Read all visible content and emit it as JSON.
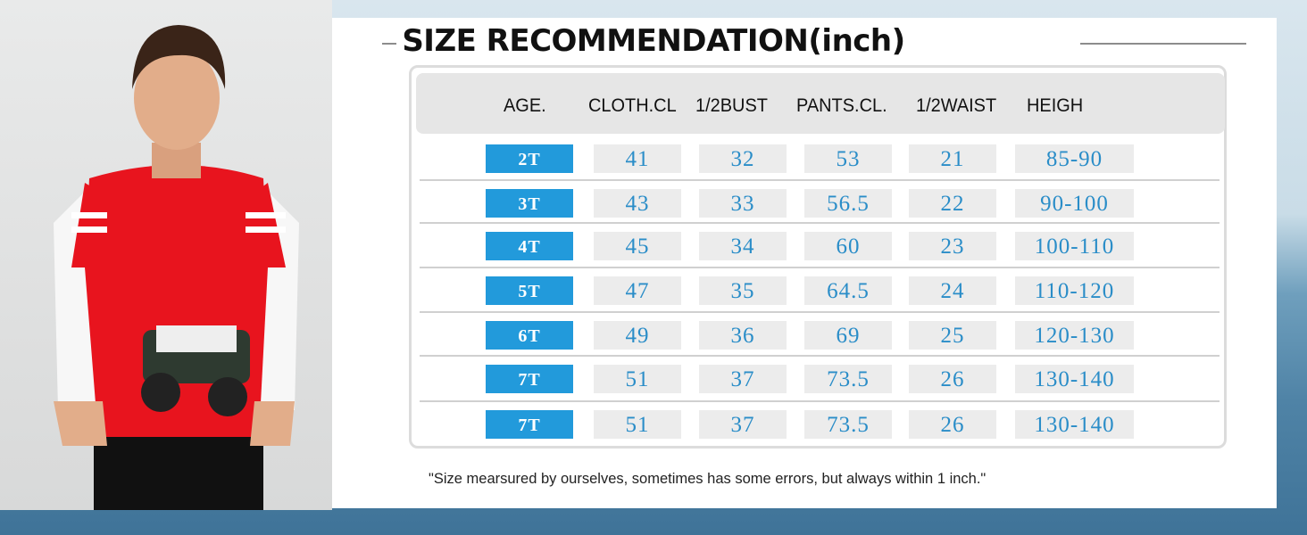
{
  "title": "SIZE RECOMMENDATION(inch)",
  "headers": [
    "AGE.",
    "CLOTH.CL",
    "1/2BUST",
    "PANTS.CL.",
    "1/2WAIST",
    "HEIGH"
  ],
  "rows": [
    [
      "2T",
      "41",
      "32",
      "53",
      "21",
      "85-90"
    ],
    [
      "3T",
      "43",
      "33",
      "56.5",
      "22",
      "90-100"
    ],
    [
      "4T",
      "45",
      "34",
      "60",
      "23",
      "100-110"
    ],
    [
      "5T",
      "47",
      "35",
      "64.5",
      "24",
      "110-120"
    ],
    [
      "6T",
      "49",
      "36",
      "69",
      "25",
      "120-130"
    ],
    [
      "7T",
      "51",
      "37",
      "73.5",
      "26",
      "130-140"
    ],
    [
      "7T",
      "51",
      "37",
      "73.5",
      "26",
      "130-140"
    ]
  ],
  "note": "\"Size mearsured by ourselves, sometimes has some errors, but always within 1 inch.\"",
  "colors": {
    "age_cell": "#229adb",
    "value_text": "#2a8dc8",
    "header_band": "#e6e6e6"
  }
}
